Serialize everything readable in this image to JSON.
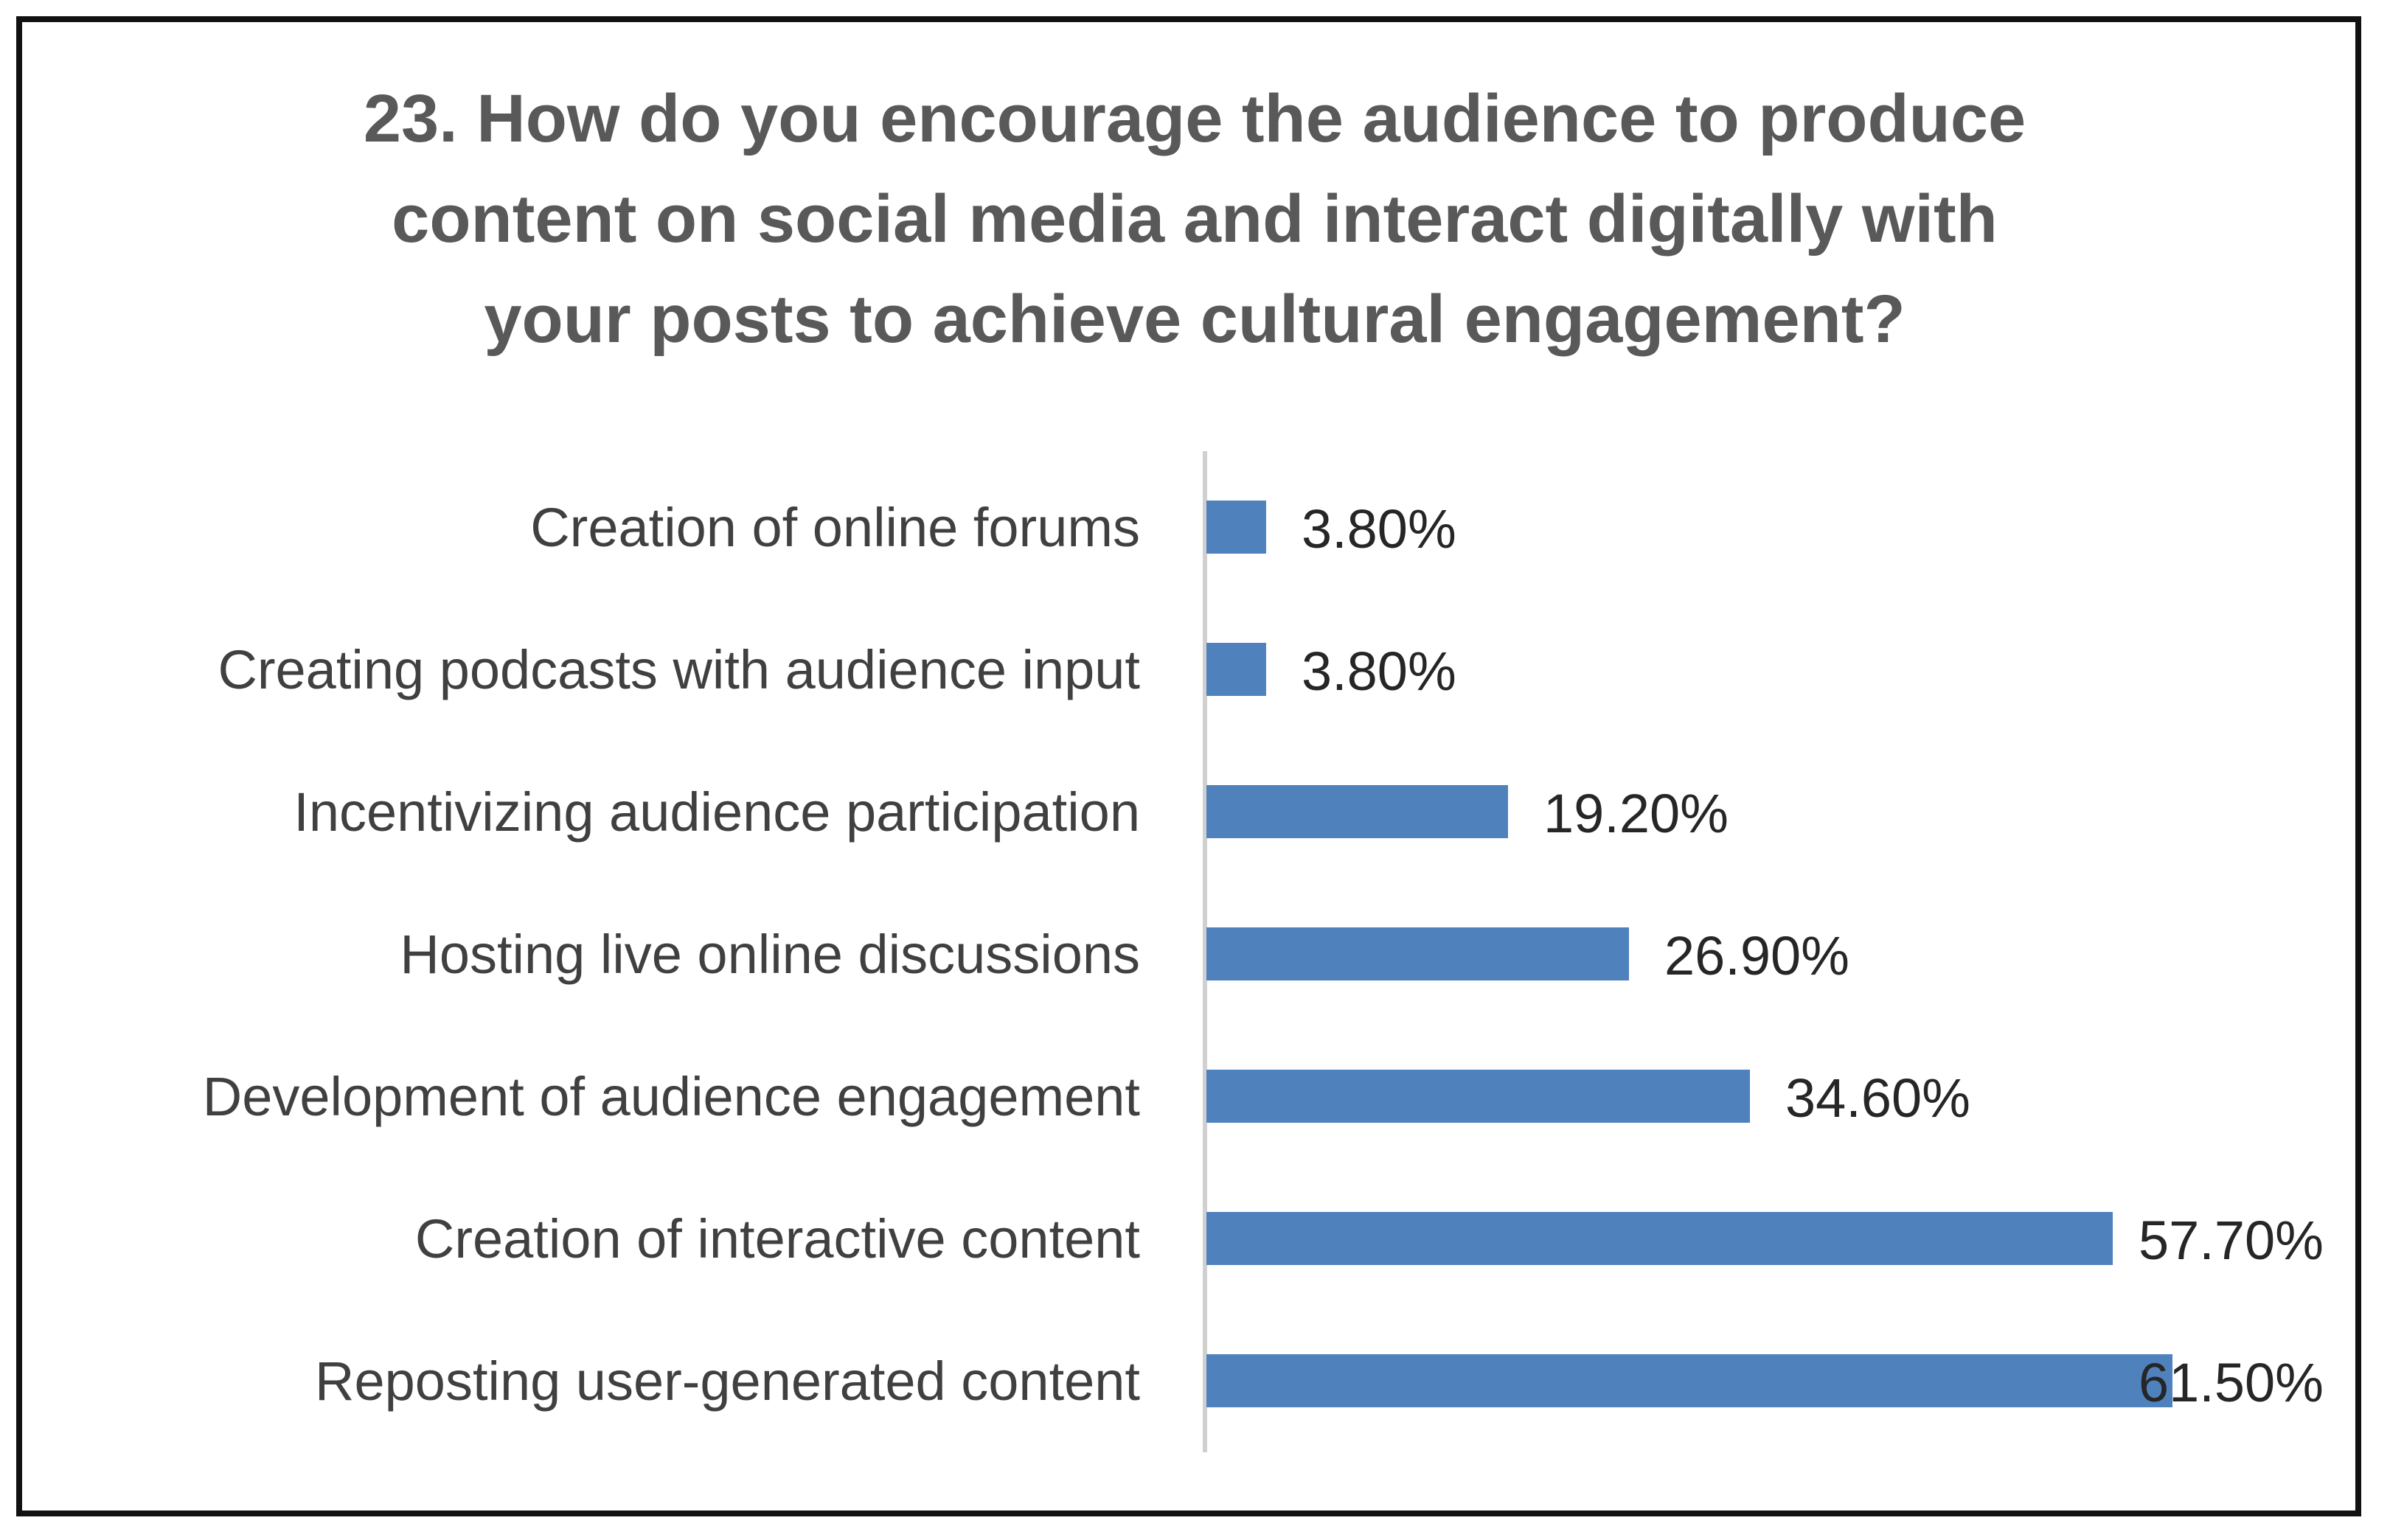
{
  "chart_data": {
    "type": "bar",
    "orientation": "horizontal",
    "title_lines": [
      "23. How do you encourage the audience to produce",
      "content on social media and interact digitally with",
      "your posts to achieve cultural engagement?"
    ],
    "categories": [
      "Creation of online forums",
      "Creating podcasts with audience input",
      "Incentivizing audience participation",
      "Hosting live online discussions",
      "Development of audience engagement",
      "Creation of interactive content",
      "Reposting user-generated content"
    ],
    "values": [
      3.8,
      3.8,
      19.2,
      26.9,
      34.6,
      57.7,
      61.5
    ],
    "value_labels": [
      "3.80%",
      "3.80%",
      "19.20%",
      "26.90%",
      "34.60%",
      "57.70%",
      "61.50%"
    ],
    "unit": "%",
    "xlim": [
      0,
      61.5
    ],
    "grid": false,
    "legend": "none",
    "bar_color": "#4F81BD"
  }
}
